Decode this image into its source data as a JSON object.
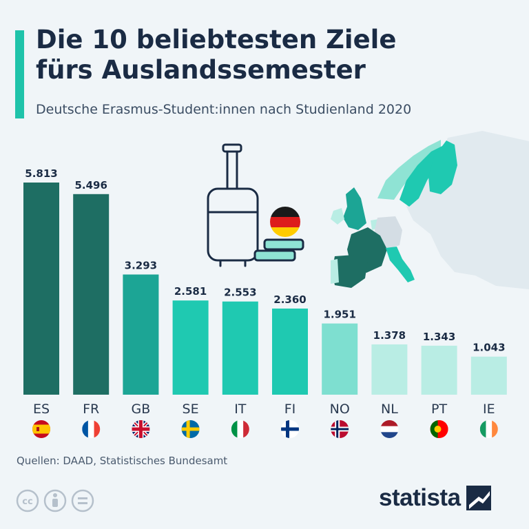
{
  "title_lines": [
    "Die 10 beliebtesten Ziele",
    "fürs Auslandssemester"
  ],
  "subtitle": "Deutsche Erasmus-Student:innen nach Studienland 2020",
  "source": "Quellen: DAAD, Statistisches Bundesamt",
  "brand": "statista",
  "colors": {
    "accent": "#1fc3aa",
    "text": "#1a2b44",
    "background": "#f0f5f8"
  },
  "icons": [
    "suitcase-icon",
    "books-icon",
    "german-flag-icon",
    "europe-map",
    "cc-icon",
    "by-icon",
    "nd-icon",
    "statista-logo-icon"
  ],
  "chart_data": {
    "type": "bar",
    "title": "Die 10 beliebtesten Ziele fürs Auslandssemester",
    "xlabel": "",
    "ylabel": "",
    "categories": [
      "ES",
      "FR",
      "GB",
      "SE",
      "IT",
      "FI",
      "NO",
      "NL",
      "PT",
      "IE"
    ],
    "values": [
      5813,
      5496,
      3293,
      2581,
      2553,
      2360,
      1951,
      1378,
      1343,
      1043
    ],
    "value_labels": [
      "5.813",
      "5.496",
      "3.293",
      "2.581",
      "2.553",
      "2.360",
      "1.951",
      "1.378",
      "1.343",
      "1.043"
    ],
    "bar_colors": [
      "#1e6e63",
      "#1e6e63",
      "#1ca595",
      "#1fc9b1",
      "#1fc9b1",
      "#1fc9b1",
      "#7edfd0",
      "#b9ede4",
      "#b9ede4",
      "#b9ede4"
    ],
    "ylim": [
      0,
      5813
    ],
    "grid": false
  }
}
